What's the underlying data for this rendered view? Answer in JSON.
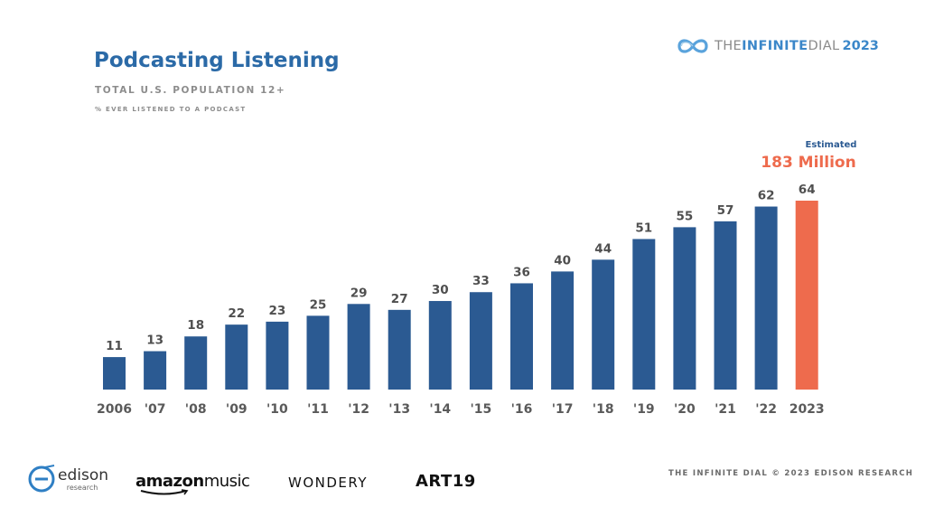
{
  "header": {
    "title": "Podcasting Listening",
    "subtitle": "TOTAL U.S. POPULATION 12+",
    "note": "% EVER LISTENED TO A PODCAST"
  },
  "brand": {
    "prefix": "THE ",
    "word": "INFINITE",
    "middle": " DIAL",
    "year": "2023",
    "icon": "infinity-icon",
    "colors": {
      "word": "#3b87c9",
      "muted": "#8a8a8a"
    }
  },
  "chart_data": {
    "type": "bar",
    "title": "Podcasting Listening",
    "subtitle": "TOTAL U.S. POPULATION 12+",
    "note": "% EVER LISTENED TO A PODCAST",
    "categories": [
      "2006",
      "'07",
      "'08",
      "'09",
      "'10",
      "'11",
      "'12",
      "'13",
      "'14",
      "'15",
      "'16",
      "'17",
      "'18",
      "'19",
      "'20",
      "'21",
      "'22",
      "2023"
    ],
    "values": [
      11,
      13,
      18,
      22,
      23,
      25,
      29,
      27,
      30,
      33,
      36,
      40,
      44,
      51,
      55,
      57,
      62,
      64
    ],
    "ylim": [
      0,
      64
    ],
    "grid": false,
    "legend": "none",
    "highlight_index": 17,
    "colors": {
      "bar": "#2b5a92",
      "highlight": "#ee6b4d",
      "label": "#4f4f4f"
    },
    "annotation": {
      "label": "Estimated",
      "value": "183 Million"
    }
  },
  "footer": {
    "sponsors": [
      "edison research",
      "amazon music",
      "WONDERY",
      "ART19"
    ],
    "edison_word": "edison",
    "edison_sub": "research",
    "amazon_bold": "amazon",
    "amazon_light": "music",
    "wondery": "WONDERY",
    "art19": "ART19",
    "credit": "THE INFINITE DIAL   © 2023 EDISON RESEARCH"
  }
}
